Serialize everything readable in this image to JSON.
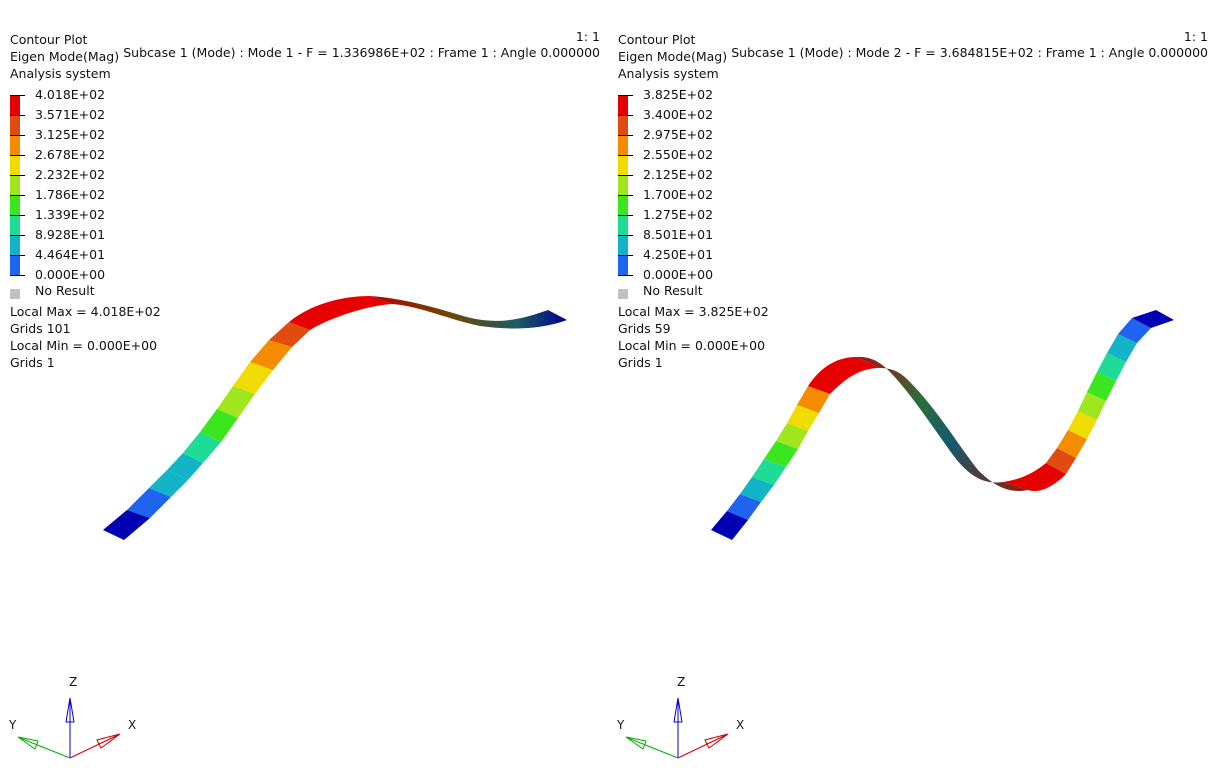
{
  "colors": {
    "contour_bands": [
      "#0000b4",
      "#1e64f0",
      "#14b4c8",
      "#1edc96",
      "#3ce61e",
      "#a0e61e",
      "#f0dc00",
      "#f58c00",
      "#e14b0f",
      "#e60000"
    ],
    "no_result": "#c0c0c0",
    "axis_x": "#cc0000",
    "axis_y": "#00aa00",
    "axis_z": "#0000cc"
  },
  "viewports": [
    {
      "scale": "1: 1",
      "subcase": "Subcase 1 (Mode) : Mode 1 - F = 1.336986E+02 : Frame 1 : Angle 0.000000",
      "plot_title": "Contour Plot",
      "result_type": "Eigen Mode(Mag)",
      "system": "Analysis system",
      "legend_values": [
        "4.018E+02",
        "3.571E+02",
        "3.125E+02",
        "2.678E+02",
        "2.232E+02",
        "1.786E+02",
        "1.339E+02",
        "8.928E+01",
        "4.464E+01",
        "0.000E+00"
      ],
      "no_result": "No Result",
      "local_max": "Local Max =  4.018E+02",
      "max_grids": "Grids 101",
      "local_min": "Local Min =  0.000E+00",
      "min_grids": "Grids 1",
      "triad": {
        "x": "X",
        "y": "Y",
        "z": "Z"
      }
    },
    {
      "scale": "1: 1",
      "subcase": "Subcase 1 (Mode) : Mode 2 - F = 3.684815E+02 : Frame 1 : Angle 0.000000",
      "plot_title": "Contour Plot",
      "result_type": "Eigen Mode(Mag)",
      "system": "Analysis system",
      "legend_values": [
        "3.825E+02",
        "3.400E+02",
        "2.975E+02",
        "2.550E+02",
        "2.125E+02",
        "1.700E+02",
        "1.275E+02",
        "8.501E+01",
        "4.250E+01",
        "0.000E+00"
      ],
      "no_result": "No Result",
      "local_max": "Local Max =  3.825E+02",
      "max_grids": "Grids 59",
      "local_min": "Local Min =  0.000E+00",
      "min_grids": "Grids 1",
      "triad": {
        "x": "X",
        "y": "Y",
        "z": "Z"
      }
    }
  ]
}
